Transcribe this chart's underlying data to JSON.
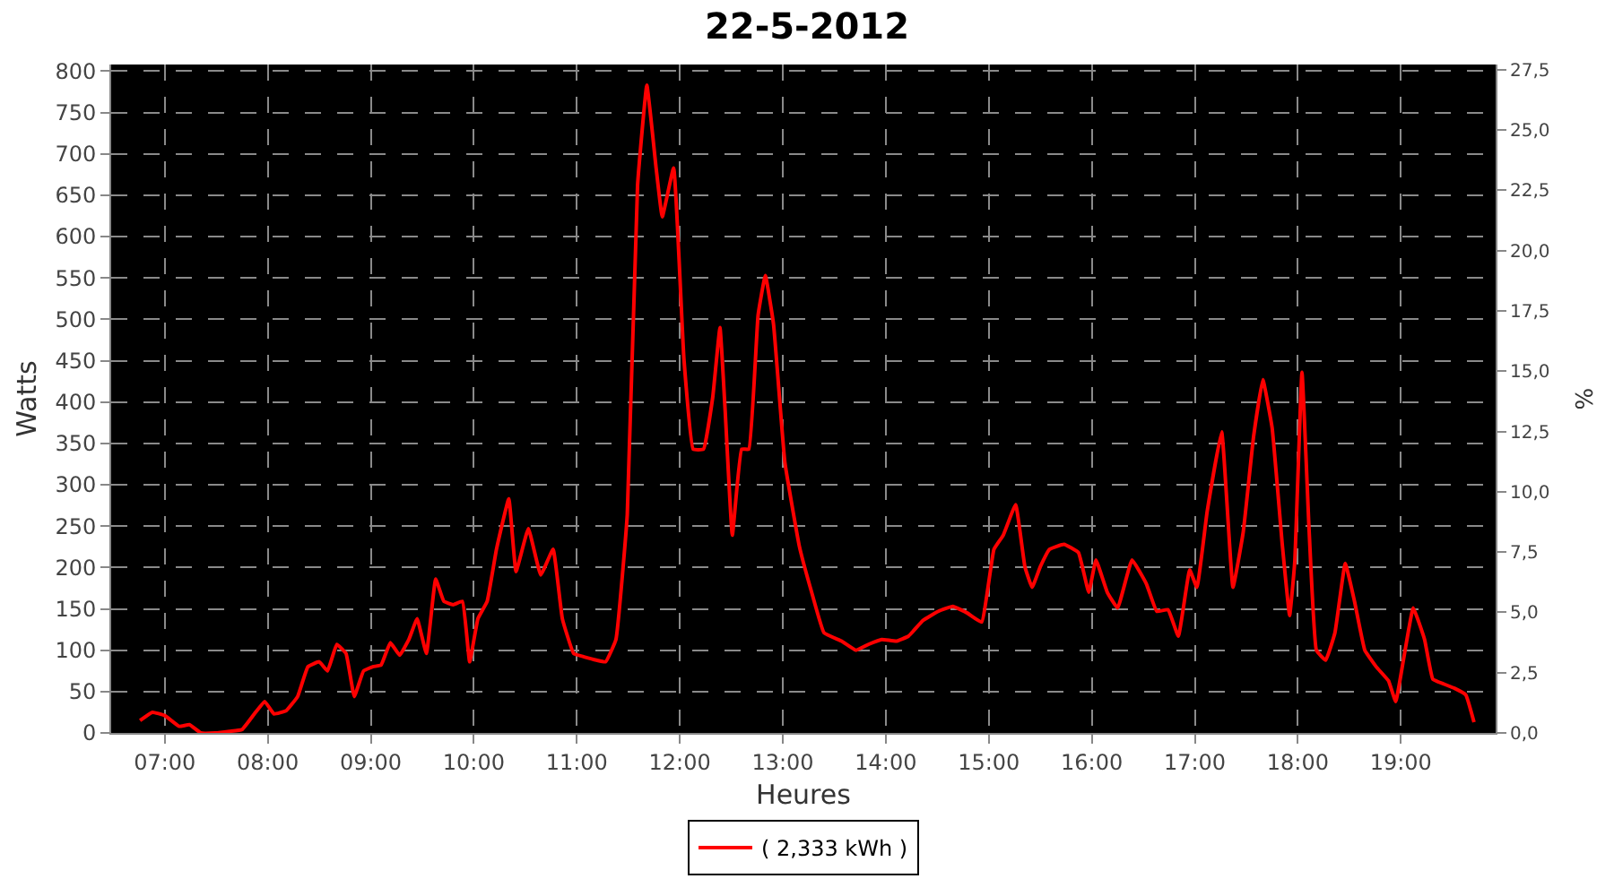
{
  "chart_data": {
    "type": "line",
    "title": "22-5-2012",
    "xlabel": "Heures",
    "ylabel": "Watts",
    "y2label": "%",
    "x": [
      6.76,
      6.88,
      7.0,
      7.14,
      7.24,
      7.35,
      7.49,
      7.63,
      7.75,
      7.87,
      7.97,
      8.06,
      8.18,
      8.29,
      8.39,
      8.5,
      8.58,
      8.67,
      8.76,
      8.84,
      8.93,
      9.02,
      9.1,
      9.19,
      9.28,
      9.37,
      9.45,
      9.54,
      9.63,
      9.71,
      9.8,
      9.89,
      9.96,
      10.04,
      10.13,
      10.22,
      10.34,
      10.41,
      10.53,
      10.65,
      10.77,
      10.86,
      10.97,
      11.07,
      11.19,
      11.28,
      11.38,
      11.49,
      11.59,
      11.68,
      11.77,
      11.83,
      11.94,
      12.04,
      12.13,
      12.23,
      12.32,
      12.39,
      12.44,
      12.51,
      12.6,
      12.67,
      12.76,
      12.83,
      12.91,
      13.02,
      13.16,
      13.28,
      13.4,
      13.57,
      13.71,
      13.83,
      13.96,
      14.1,
      14.22,
      14.36,
      14.51,
      14.65,
      14.79,
      14.93,
      15.05,
      15.14,
      15.26,
      15.35,
      15.42,
      15.5,
      15.59,
      15.73,
      15.87,
      15.97,
      16.04,
      16.15,
      16.25,
      16.39,
      16.53,
      16.63,
      16.74,
      16.84,
      16.95,
      17.02,
      17.12,
      17.26,
      17.37,
      17.47,
      17.57,
      17.66,
      17.75,
      17.85,
      17.92,
      17.97,
      18.04,
      18.11,
      18.18,
      18.27,
      18.36,
      18.46,
      18.55,
      18.65,
      18.76,
      18.88,
      18.95,
      19.03,
      19.12,
      19.23,
      19.31,
      19.42,
      19.52,
      19.63,
      19.71
    ],
    "series": [
      {
        "name": "( 2,333 kWh )",
        "color": "#ff0000",
        "values": [
          15,
          25,
          21,
          8,
          10,
          0,
          0,
          2,
          4,
          23,
          38,
          23,
          27,
          44,
          80,
          86,
          75,
          107,
          96,
          44,
          75,
          80,
          82,
          109,
          94,
          113,
          138,
          96,
          186,
          159,
          155,
          159,
          86,
          138,
          159,
          222,
          283,
          195,
          247,
          191,
          222,
          138,
          96,
          92,
          88,
          86,
          113,
          264,
          662,
          783,
          683,
          624,
          683,
          452,
          343,
          343,
          406,
          490,
          390,
          239,
          343,
          343,
          505,
          553,
          494,
          327,
          226,
          170,
          121,
          111,
          100,
          107,
          113,
          111,
          117,
          136,
          147,
          153,
          145,
          134,
          222,
          239,
          276,
          201,
          176,
          201,
          222,
          228,
          218,
          170,
          209,
          170,
          151,
          209,
          180,
          147,
          149,
          117,
          197,
          176,
          268,
          364,
          176,
          243,
          358,
          427,
          369,
          226,
          142,
          207,
          436,
          243,
          100,
          88,
          121,
          205,
          159,
          100,
          80,
          63,
          38,
          92,
          151,
          113,
          65,
          59,
          54,
          46,
          13
        ]
      }
    ],
    "xlim": [
      6.48,
      19.92
    ],
    "xticks": [
      {
        "value": 7,
        "label": "07:00"
      },
      {
        "value": 8,
        "label": "08:00"
      },
      {
        "value": 9,
        "label": "09:00"
      },
      {
        "value": 10,
        "label": "10:00"
      },
      {
        "value": 11,
        "label": "11:00"
      },
      {
        "value": 12,
        "label": "12:00"
      },
      {
        "value": 13,
        "label": "13:00"
      },
      {
        "value": 14,
        "label": "14:00"
      },
      {
        "value": 15,
        "label": "15:00"
      },
      {
        "value": 16,
        "label": "16:00"
      },
      {
        "value": 17,
        "label": "17:00"
      },
      {
        "value": 18,
        "label": "18:00"
      },
      {
        "value": 19,
        "label": "19:00"
      }
    ],
    "ylim": [
      0,
      808
    ],
    "yticks": [
      0,
      50,
      100,
      150,
      200,
      250,
      300,
      350,
      400,
      450,
      500,
      550,
      600,
      650,
      700,
      750,
      800
    ],
    "y2lim": [
      0,
      27.72
    ],
    "y2ticks": [
      {
        "value": 0,
        "label": "0,0"
      },
      {
        "value": 2.5,
        "label": "2,5"
      },
      {
        "value": 5,
        "label": "5,0"
      },
      {
        "value": 7.5,
        "label": "7,5"
      },
      {
        "value": 10,
        "label": "10,0"
      },
      {
        "value": 12.5,
        "label": "12,5"
      },
      {
        "value": 15,
        "label": "15,0"
      },
      {
        "value": 17.5,
        "label": "17,5"
      },
      {
        "value": 20,
        "label": "20,0"
      },
      {
        "value": 22.5,
        "label": "22,5"
      },
      {
        "value": 25,
        "label": "25,0"
      },
      {
        "value": 27.5,
        "label": "27,5"
      }
    ],
    "grid": true,
    "legend": "bottom",
    "marker": "none",
    "line_style": "solid"
  }
}
